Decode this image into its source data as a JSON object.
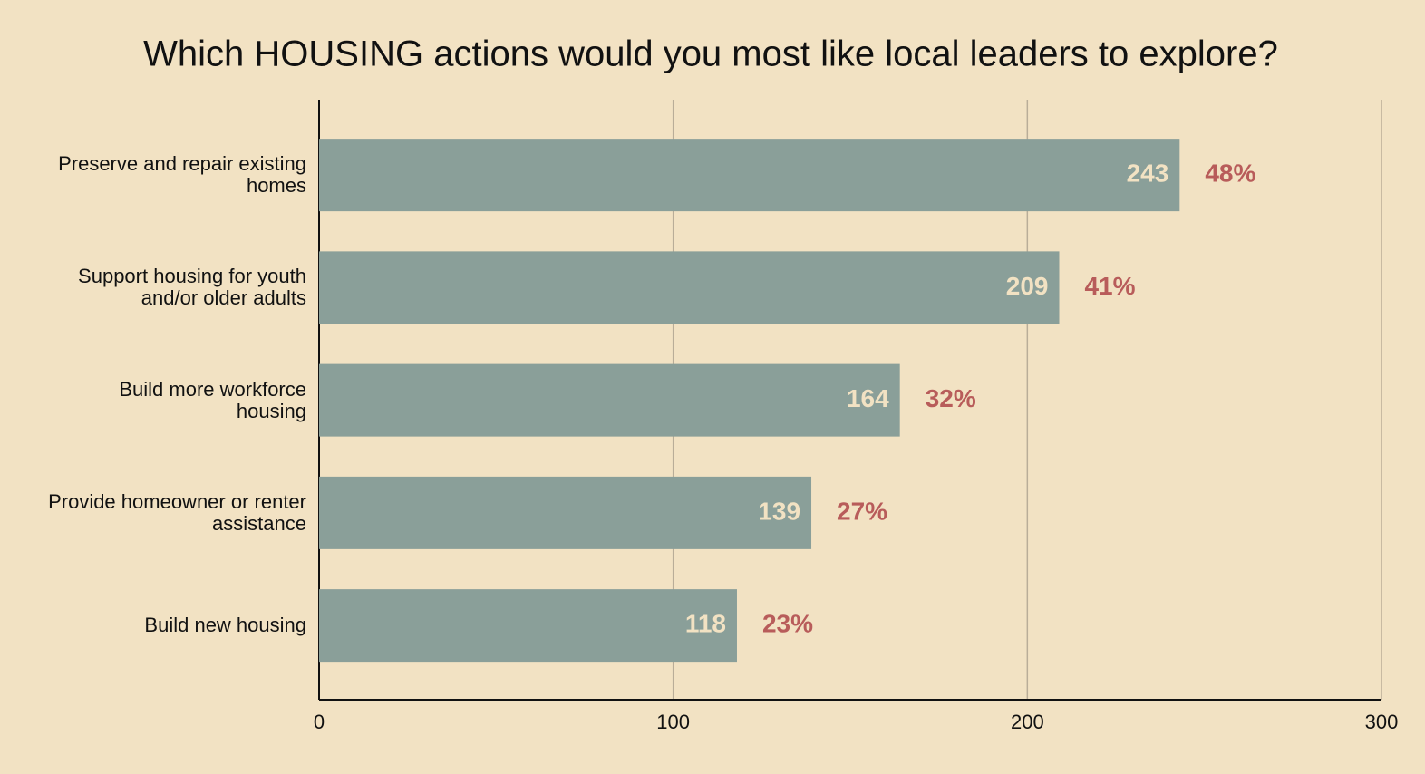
{
  "chart_data": {
    "type": "hbar",
    "title": "Which HOUSING actions would you most like local leaders to explore?",
    "categories": [
      "Preserve and repair existing homes",
      "Support housing for youth and/or older adults",
      "Build more workforce housing",
      "Provide homeowner or renter assistance",
      "Build new housing"
    ],
    "values": [
      243,
      209,
      164,
      139,
      118
    ],
    "color": "#8a9f99",
    "shares": {
      "values": [
        48,
        41,
        32,
        27,
        23
      ],
      "value_labels": [
        "48%",
        "41%",
        "32%",
        "27%",
        "23%"
      ],
      "color": "#b85c5a"
    },
    "xlim": [
      0,
      300
    ],
    "xticks": [
      0,
      100,
      200,
      300
    ],
    "grid": true
  }
}
